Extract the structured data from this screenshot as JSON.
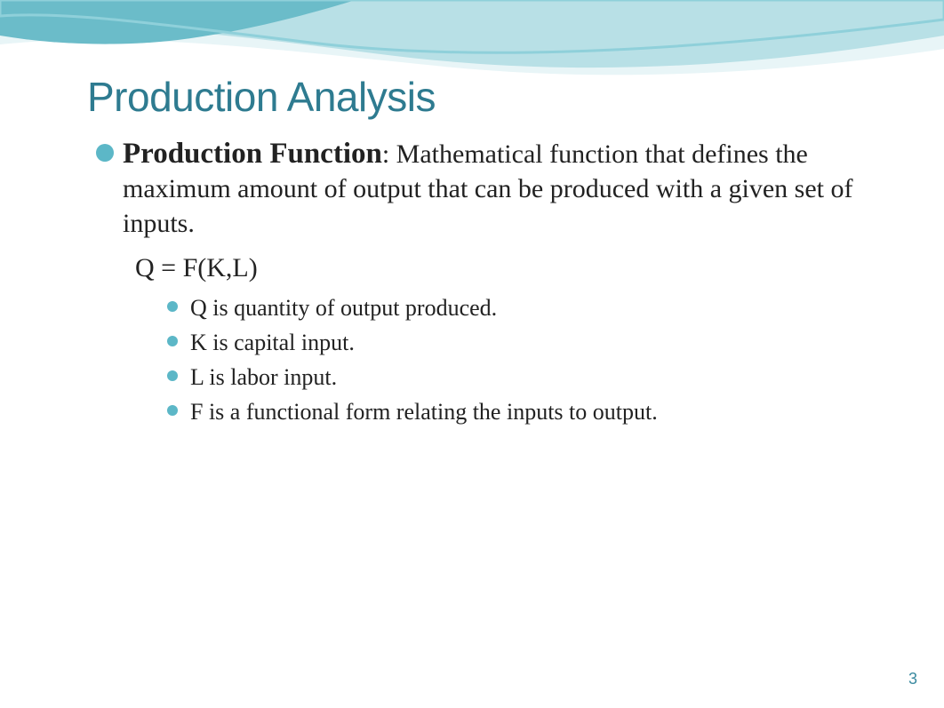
{
  "colors": {
    "title": "#2e7b90",
    "bullet_large": "#5cb7c7",
    "bullet_small": "#5cb7c7",
    "wave_dark": "#6bbcc9",
    "wave_light": "#b8e0e6",
    "wave_pale": "#e8f5f7",
    "page_num": "#3a8aa0",
    "text": "#222222"
  },
  "typography": {
    "title_size": 46,
    "main_bold_size": 33,
    "main_text_size": 30,
    "formula_size": 30,
    "sub_text_size": 26,
    "page_num_size": 18
  },
  "shapes": {
    "bullet_large_diameter": 20,
    "bullet_small_diameter": 12
  },
  "title": "Production Analysis",
  "main": {
    "bold_label": "Production Function",
    "definition": ": Mathematical function that defines the maximum amount of output that can be produced with a given set of inputs."
  },
  "formula": "Q = F(K,L)",
  "sub_items": [
    "Q is quantity of output produced.",
    "K is capital input.",
    "L is labor input.",
    "F is a functional form relating the inputs to output."
  ],
  "page_number": "3"
}
